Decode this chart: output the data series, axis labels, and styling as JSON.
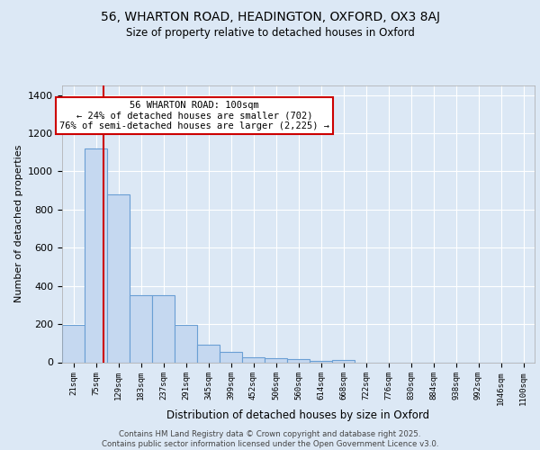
{
  "title_line1": "56, WHARTON ROAD, HEADINGTON, OXFORD, OX3 8AJ",
  "title_line2": "Size of property relative to detached houses in Oxford",
  "xlabel": "Distribution of detached houses by size in Oxford",
  "ylabel": "Number of detached properties",
  "bar_labels": [
    "21sqm",
    "75sqm",
    "129sqm",
    "183sqm",
    "237sqm",
    "291sqm",
    "345sqm",
    "399sqm",
    "452sqm",
    "506sqm",
    "560sqm",
    "614sqm",
    "668sqm",
    "722sqm",
    "776sqm",
    "830sqm",
    "884sqm",
    "938sqm",
    "992sqm",
    "1046sqm",
    "1100sqm"
  ],
  "bar_values": [
    195,
    1120,
    880,
    350,
    350,
    195,
    90,
    55,
    25,
    20,
    15,
    5,
    10,
    0,
    0,
    0,
    0,
    0,
    0,
    0,
    0
  ],
  "bar_color": "#c5d8f0",
  "bar_edge_color": "#6a9fd4",
  "bar_edge_width": 0.8,
  "red_line_color": "#cc0000",
  "annotation_box_text": "56 WHARTON ROAD: 100sqm\n← 24% of detached houses are smaller (702)\n76% of semi-detached houses are larger (2,225) →",
  "ylim": [
    0,
    1450
  ],
  "yticks": [
    0,
    200,
    400,
    600,
    800,
    1000,
    1200,
    1400
  ],
  "background_color": "#dce8f5",
  "axes_facecolor": "#dce8f5",
  "grid_color": "#ffffff",
  "footer_text": "Contains HM Land Registry data © Crown copyright and database right 2025.\nContains public sector information licensed under the Open Government Licence v3.0."
}
